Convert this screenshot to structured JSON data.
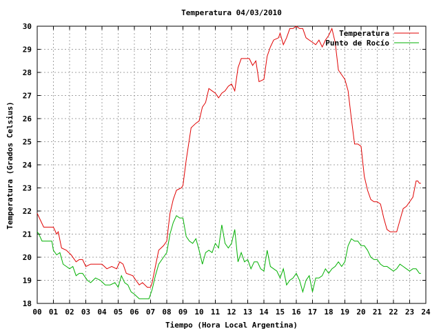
{
  "chart_data": {
    "type": "line",
    "title": "Temperatura 04/03/2010",
    "xlabel": "Tiempo (Hora Local Argentina)",
    "ylabel": "Temperatura (Grados Celsius)",
    "xlim": [
      0,
      24
    ],
    "ylim": [
      18,
      30
    ],
    "xticks": [
      "00",
      "01",
      "02",
      "03",
      "04",
      "05",
      "06",
      "07",
      "08",
      "09",
      "10",
      "11",
      "12",
      "13",
      "14",
      "15",
      "16",
      "17",
      "18",
      "19",
      "20",
      "21",
      "22",
      "23",
      "24"
    ],
    "yticks": [
      "18",
      "19",
      "20",
      "21",
      "22",
      "23",
      "24",
      "25",
      "26",
      "27",
      "28",
      "29",
      "30"
    ],
    "grid": true,
    "legend_position": "top-right",
    "series": [
      {
        "name": "Temperatura",
        "color": "#e00000",
        "points": [
          [
            0.0,
            21.9
          ],
          [
            0.2,
            21.6
          ],
          [
            0.4,
            21.3
          ],
          [
            0.7,
            21.3
          ],
          [
            1.0,
            21.3
          ],
          [
            1.2,
            21.0
          ],
          [
            1.3,
            21.1
          ],
          [
            1.5,
            20.4
          ],
          [
            1.8,
            20.3
          ],
          [
            2.1,
            20.1
          ],
          [
            2.4,
            19.8
          ],
          [
            2.6,
            19.9
          ],
          [
            2.8,
            19.9
          ],
          [
            3.0,
            19.6
          ],
          [
            3.3,
            19.7
          ],
          [
            3.6,
            19.7
          ],
          [
            4.0,
            19.7
          ],
          [
            4.3,
            19.5
          ],
          [
            4.6,
            19.6
          ],
          [
            4.9,
            19.5
          ],
          [
            5.1,
            19.8
          ],
          [
            5.3,
            19.7
          ],
          [
            5.5,
            19.3
          ],
          [
            5.9,
            19.2
          ],
          [
            6.1,
            19.0
          ],
          [
            6.3,
            18.8
          ],
          [
            6.5,
            18.9
          ],
          [
            6.8,
            18.7
          ],
          [
            7.0,
            18.7
          ],
          [
            7.1,
            18.9
          ],
          [
            7.3,
            19.6
          ],
          [
            7.5,
            20.3
          ],
          [
            7.8,
            20.5
          ],
          [
            8.0,
            20.7
          ],
          [
            8.2,
            21.9
          ],
          [
            8.4,
            22.5
          ],
          [
            8.6,
            22.9
          ],
          [
            8.9,
            23.0
          ],
          [
            9.0,
            23.1
          ],
          [
            9.2,
            24.2
          ],
          [
            9.5,
            25.6
          ],
          [
            9.8,
            25.8
          ],
          [
            10.0,
            25.9
          ],
          [
            10.2,
            26.5
          ],
          [
            10.4,
            26.7
          ],
          [
            10.6,
            27.3
          ],
          [
            10.8,
            27.2
          ],
          [
            11.0,
            27.1
          ],
          [
            11.2,
            26.9
          ],
          [
            11.4,
            27.1
          ],
          [
            11.6,
            27.2
          ],
          [
            11.8,
            27.4
          ],
          [
            12.0,
            27.5
          ],
          [
            12.2,
            27.2
          ],
          [
            12.4,
            28.2
          ],
          [
            12.6,
            28.6
          ],
          [
            12.9,
            28.6
          ],
          [
            13.1,
            28.6
          ],
          [
            13.3,
            28.3
          ],
          [
            13.5,
            28.5
          ],
          [
            13.7,
            27.6
          ],
          [
            14.0,
            27.7
          ],
          [
            14.2,
            28.7
          ],
          [
            14.4,
            29.1
          ],
          [
            14.6,
            29.4
          ],
          [
            14.9,
            29.5
          ],
          [
            15.0,
            29.7
          ],
          [
            15.2,
            29.2
          ],
          [
            15.4,
            29.5
          ],
          [
            15.6,
            29.9
          ],
          [
            15.8,
            29.9
          ],
          [
            16.0,
            30.0
          ],
          [
            16.2,
            29.9
          ],
          [
            16.4,
            29.9
          ],
          [
            16.6,
            29.5
          ],
          [
            16.8,
            29.4
          ],
          [
            17.0,
            29.3
          ],
          [
            17.2,
            29.2
          ],
          [
            17.4,
            29.4
          ],
          [
            17.6,
            29.1
          ],
          [
            17.8,
            29.4
          ],
          [
            18.0,
            29.6
          ],
          [
            18.2,
            29.9
          ],
          [
            18.4,
            29.3
          ],
          [
            18.6,
            28.1
          ],
          [
            18.8,
            27.9
          ],
          [
            19.0,
            27.7
          ],
          [
            19.2,
            27.2
          ],
          [
            19.4,
            26.0
          ],
          [
            19.6,
            24.9
          ],
          [
            19.8,
            24.9
          ],
          [
            20.0,
            24.8
          ],
          [
            20.2,
            23.5
          ],
          [
            20.4,
            22.9
          ],
          [
            20.6,
            22.5
          ],
          [
            20.8,
            22.4
          ],
          [
            21.0,
            22.4
          ],
          [
            21.2,
            22.3
          ],
          [
            21.4,
            21.7
          ],
          [
            21.6,
            21.2
          ],
          [
            21.8,
            21.1
          ],
          [
            22.0,
            21.1
          ],
          [
            22.2,
            21.1
          ],
          [
            22.4,
            21.6
          ],
          [
            22.6,
            22.1
          ],
          [
            22.8,
            22.2
          ],
          [
            23.0,
            22.4
          ],
          [
            23.2,
            22.6
          ],
          [
            23.4,
            23.3
          ],
          [
            23.5,
            23.3
          ],
          [
            23.6,
            23.2
          ],
          [
            23.7,
            23.2
          ]
        ]
      },
      {
        "name": "Punto de Rocío",
        "color": "#00b000",
        "points": [
          [
            0.0,
            21.1
          ],
          [
            0.1,
            21.0
          ],
          [
            0.3,
            20.7
          ],
          [
            0.6,
            20.7
          ],
          [
            0.9,
            20.7
          ],
          [
            1.0,
            20.3
          ],
          [
            1.2,
            20.1
          ],
          [
            1.4,
            20.2
          ],
          [
            1.6,
            19.7
          ],
          [
            1.8,
            19.6
          ],
          [
            2.0,
            19.5
          ],
          [
            2.2,
            19.6
          ],
          [
            2.4,
            19.2
          ],
          [
            2.6,
            19.3
          ],
          [
            2.8,
            19.3
          ],
          [
            3.1,
            19.0
          ],
          [
            3.3,
            18.9
          ],
          [
            3.6,
            19.1
          ],
          [
            3.9,
            19.0
          ],
          [
            4.2,
            18.8
          ],
          [
            4.5,
            18.8
          ],
          [
            4.8,
            18.9
          ],
          [
            5.0,
            18.7
          ],
          [
            5.2,
            19.2
          ],
          [
            5.4,
            18.9
          ],
          [
            5.6,
            18.8
          ],
          [
            5.8,
            18.5
          ],
          [
            6.0,
            18.4
          ],
          [
            6.3,
            18.2
          ],
          [
            6.6,
            18.2
          ],
          [
            6.9,
            18.2
          ],
          [
            7.1,
            18.6
          ],
          [
            7.3,
            19.2
          ],
          [
            7.5,
            19.7
          ],
          [
            7.8,
            20.0
          ],
          [
            8.0,
            20.2
          ],
          [
            8.2,
            21.0
          ],
          [
            8.4,
            21.5
          ],
          [
            8.6,
            21.8
          ],
          [
            8.8,
            21.7
          ],
          [
            9.0,
            21.7
          ],
          [
            9.2,
            20.9
          ],
          [
            9.4,
            20.7
          ],
          [
            9.6,
            20.6
          ],
          [
            9.8,
            20.8
          ],
          [
            10.0,
            20.3
          ],
          [
            10.2,
            19.7
          ],
          [
            10.4,
            20.2
          ],
          [
            10.6,
            20.3
          ],
          [
            10.8,
            20.2
          ],
          [
            11.0,
            20.6
          ],
          [
            11.2,
            20.4
          ],
          [
            11.4,
            21.4
          ],
          [
            11.6,
            20.6
          ],
          [
            11.8,
            20.4
          ],
          [
            12.0,
            20.6
          ],
          [
            12.2,
            21.2
          ],
          [
            12.4,
            19.8
          ],
          [
            12.6,
            20.2
          ],
          [
            12.8,
            19.8
          ],
          [
            13.0,
            19.9
          ],
          [
            13.2,
            19.5
          ],
          [
            13.4,
            19.8
          ],
          [
            13.6,
            19.8
          ],
          [
            13.8,
            19.5
          ],
          [
            14.0,
            19.4
          ],
          [
            14.2,
            20.3
          ],
          [
            14.4,
            19.6
          ],
          [
            14.6,
            19.5
          ],
          [
            14.8,
            19.4
          ],
          [
            15.0,
            19.1
          ],
          [
            15.2,
            19.5
          ],
          [
            15.4,
            18.8
          ],
          [
            15.6,
            19.0
          ],
          [
            15.8,
            19.1
          ],
          [
            16.0,
            19.3
          ],
          [
            16.2,
            19.0
          ],
          [
            16.4,
            18.5
          ],
          [
            16.6,
            19.0
          ],
          [
            16.8,
            19.2
          ],
          [
            17.0,
            18.5
          ],
          [
            17.2,
            19.1
          ],
          [
            17.4,
            19.1
          ],
          [
            17.6,
            19.2
          ],
          [
            17.8,
            19.5
          ],
          [
            18.0,
            19.3
          ],
          [
            18.2,
            19.5
          ],
          [
            18.4,
            19.6
          ],
          [
            18.6,
            19.8
          ],
          [
            18.8,
            19.6
          ],
          [
            19.0,
            19.8
          ],
          [
            19.2,
            20.5
          ],
          [
            19.4,
            20.8
          ],
          [
            19.6,
            20.7
          ],
          [
            19.8,
            20.7
          ],
          [
            20.0,
            20.5
          ],
          [
            20.2,
            20.5
          ],
          [
            20.4,
            20.3
          ],
          [
            20.6,
            20.0
          ],
          [
            20.8,
            19.9
          ],
          [
            21.0,
            19.9
          ],
          [
            21.2,
            19.7
          ],
          [
            21.4,
            19.6
          ],
          [
            21.6,
            19.6
          ],
          [
            21.8,
            19.5
          ],
          [
            22.0,
            19.4
          ],
          [
            22.2,
            19.5
          ],
          [
            22.4,
            19.7
          ],
          [
            22.6,
            19.6
          ],
          [
            22.8,
            19.5
          ],
          [
            23.0,
            19.4
          ],
          [
            23.2,
            19.5
          ],
          [
            23.4,
            19.5
          ],
          [
            23.5,
            19.4
          ],
          [
            23.6,
            19.3
          ],
          [
            23.7,
            19.3
          ]
        ]
      }
    ]
  }
}
